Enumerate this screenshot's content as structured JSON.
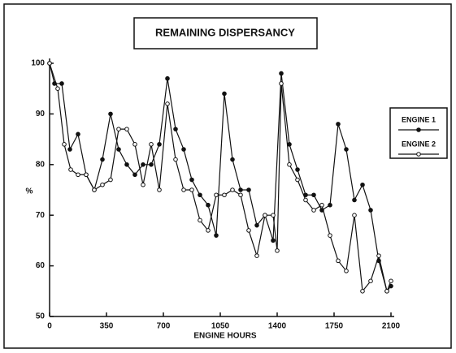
{
  "chart_data": {
    "type": "line",
    "title": "REMAINING DISPERSANCY",
    "x_label": "ENGINE HOURS",
    "y_label": "%",
    "xlim": [
      0,
      2100
    ],
    "xticks": [
      0,
      350,
      700,
      1050,
      1400,
      1750,
      2100
    ],
    "ylim": [
      50,
      100
    ],
    "yticks": [
      50,
      60,
      70,
      80,
      90,
      100
    ],
    "grid": false,
    "legend": "right",
    "series": [
      {
        "name": "ENGINE 1",
        "color": "#111111",
        "marker": "filled",
        "x": [
          0,
          30,
          75,
          125,
          175,
          225,
          275,
          325,
          375,
          425,
          475,
          525,
          575,
          625,
          675,
          725,
          775,
          825,
          875,
          925,
          975,
          1025,
          1075,
          1125,
          1175,
          1225,
          1275,
          1325,
          1375,
          1425,
          1475,
          1525,
          1575,
          1625,
          1675,
          1725,
          1775,
          1825,
          1875,
          1925,
          1975,
          2025,
          2075,
          2100
        ],
        "values": [
          100,
          96,
          96,
          83,
          86,
          78,
          75,
          81,
          90,
          83,
          80,
          78,
          80,
          80,
          84,
          97,
          87,
          83,
          77,
          74,
          72,
          66,
          94,
          81,
          75,
          75,
          68,
          70,
          65,
          98,
          84,
          79,
          74,
          74,
          71,
          72,
          88,
          83,
          73,
          76,
          71,
          61,
          55,
          56
        ]
      },
      {
        "name": "ENGINE 2",
        "color": "#111111",
        "marker": "open",
        "x": [
          0,
          50,
          90,
          130,
          175,
          225,
          275,
          325,
          375,
          425,
          475,
          525,
          575,
          625,
          675,
          725,
          775,
          825,
          875,
          925,
          975,
          1025,
          1075,
          1125,
          1175,
          1225,
          1275,
          1325,
          1375,
          1400,
          1425,
          1475,
          1525,
          1575,
          1625,
          1675,
          1725,
          1775,
          1825,
          1875,
          1925,
          1975,
          2025,
          2075,
          2100
        ],
        "values": [
          100,
          95,
          84,
          79,
          78,
          78,
          75,
          76,
          77,
          87,
          87,
          84,
          76,
          84,
          75,
          92,
          81,
          75,
          75,
          69,
          67,
          74,
          74,
          75,
          74,
          67,
          62,
          70,
          70,
          63,
          96,
          80,
          77,
          73,
          71,
          72,
          66,
          61,
          59,
          70,
          55,
          57,
          62,
          55,
          57
        ]
      }
    ]
  }
}
